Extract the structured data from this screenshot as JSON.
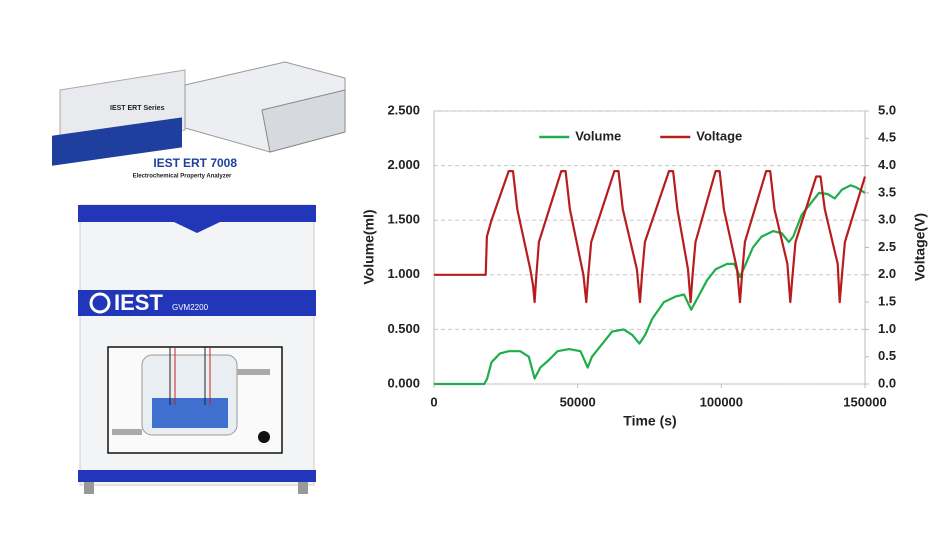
{
  "illustration": {
    "device_label": "IEST ERT Series",
    "analyzer_brand": "IEST",
    "analyzer_model": "ERT 7008",
    "analyzer_subtitle": "Electrochemical Property Analyzer",
    "gvm_brand": "IEST",
    "gvm_model": "GVM2200"
  },
  "chart_data": {
    "type": "line",
    "xlabel": "Time (s)",
    "ylabel": "Volume(ml)",
    "y2label": "Voltage(V)",
    "xlim": [
      0,
      150000
    ],
    "xticks": [
      0,
      50000,
      100000,
      150000
    ],
    "ylim": [
      0,
      2.5
    ],
    "yticks": [
      {
        "value": 0,
        "label": "0.000"
      },
      {
        "value": 0.5,
        "label": "0.500"
      },
      {
        "value": 1,
        "label": "1.000"
      },
      {
        "value": 1.5,
        "label": "1.500"
      },
      {
        "value": 2,
        "label": "2.000"
      },
      {
        "value": 2.5,
        "label": "2.500"
      }
    ],
    "y2lim": [
      0,
      5
    ],
    "y2ticks": [
      {
        "value": 0,
        "label": "0.0"
      },
      0.5,
      {
        "value": 1,
        "label": "1.0"
      },
      1.5,
      {
        "value": 2,
        "label": "2.0"
      },
      2.5,
      {
        "value": 3,
        "label": "3.0"
      },
      3.5,
      {
        "value": 4,
        "label": "4.0"
      },
      4.5,
      {
        "value": 5,
        "label": "5.0"
      }
    ],
    "grid": true,
    "legend": "upper center",
    "series": [
      {
        "name": "Volume",
        "color": "#1fae4b",
        "x": [
          0,
          17500,
          18500,
          20000,
          23000,
          26000,
          30000,
          33000,
          35000,
          37000,
          40000,
          43000,
          47000,
          51000,
          53500,
          55000,
          58000,
          62000,
          66000,
          69000,
          71500,
          73500,
          76000,
          80000,
          84000,
          87000,
          89500,
          92000,
          95000,
          98000,
          102000,
          104500,
          106500,
          108500,
          111000,
          114000,
          118000,
          121000,
          123500,
          125000,
          128000,
          131000,
          134000,
          137000,
          139500,
          142000,
          145000,
          147000,
          150000
        ],
        "values": [
          0,
          0,
          0.05,
          0.2,
          0.28,
          0.3,
          0.3,
          0.25,
          0.05,
          0.15,
          0.22,
          0.3,
          0.32,
          0.3,
          0.15,
          0.25,
          0.35,
          0.48,
          0.5,
          0.45,
          0.37,
          0.45,
          0.6,
          0.75,
          0.8,
          0.82,
          0.68,
          0.8,
          0.95,
          1.05,
          1.1,
          1.1,
          0.98,
          1.1,
          1.25,
          1.35,
          1.4,
          1.38,
          1.3,
          1.35,
          1.55,
          1.65,
          1.75,
          1.74,
          1.7,
          1.78,
          1.82,
          1.8,
          1.75
        ]
      },
      {
        "name": "Voltage",
        "color": "#b81d1d",
        "axis": "y2",
        "x": [
          0,
          18000,
          18400,
          20000,
          26000,
          27500,
          29000,
          33500,
          34500,
          35000,
          35500,
          36500,
          44300,
          45800,
          47300,
          52000,
          53000,
          53700,
          54700,
          62800,
          64200,
          65700,
          70600,
          71700,
          72400,
          73400,
          81800,
          83200,
          84700,
          88400,
          89300,
          90000,
          91000,
          98000,
          99400,
          100900,
          105500,
          106500,
          107200,
          108200,
          115600,
          117000,
          118500,
          123000,
          124000,
          124800,
          125800,
          133000,
          134500,
          136000,
          140500,
          141200,
          142000,
          143000,
          150000
        ],
        "values": [
          2.0,
          2.0,
          2.7,
          3.0,
          3.9,
          3.9,
          3.2,
          2.1,
          1.8,
          1.5,
          1.9,
          2.6,
          3.9,
          3.9,
          3.2,
          2.0,
          1.5,
          2.0,
          2.6,
          3.9,
          3.9,
          3.2,
          2.1,
          1.5,
          2.0,
          2.6,
          3.9,
          3.9,
          3.2,
          2.1,
          1.5,
          2.0,
          2.6,
          3.9,
          3.9,
          3.2,
          2.1,
          1.5,
          2.0,
          2.6,
          3.9,
          3.9,
          3.2,
          2.2,
          1.5,
          2.0,
          2.6,
          3.8,
          3.8,
          3.2,
          2.2,
          1.5,
          2.0,
          2.6,
          3.8
        ]
      }
    ]
  }
}
